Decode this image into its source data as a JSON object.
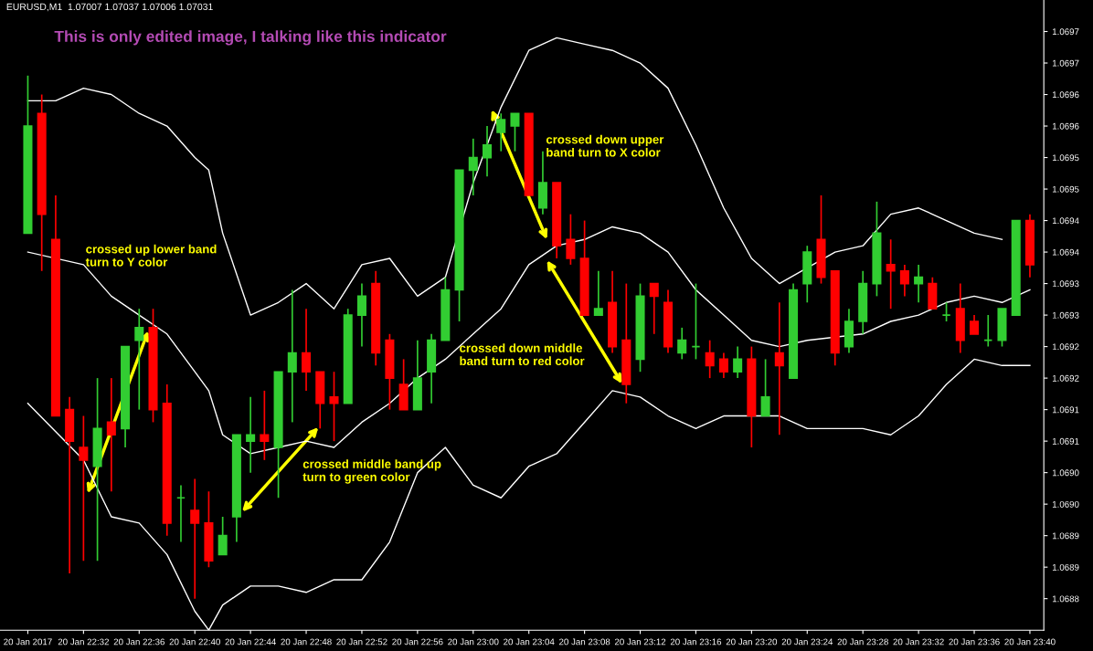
{
  "chart_data": {
    "type": "candlestick",
    "title": "EURUSD,M1  1.07007 1.07037 1.07006 1.07031",
    "subtitle": "This is only edited image, I talking like this indicator",
    "x": [
      "2017-01-20T22:28",
      "2017-01-20T22:29",
      "2017-01-20T22:30",
      "2017-01-20T22:31",
      "2017-01-20T22:32",
      "2017-01-20T22:33",
      "2017-01-20T22:34",
      "2017-01-20T22:35",
      "2017-01-20T22:36",
      "2017-01-20T22:37",
      "2017-01-20T22:38",
      "2017-01-20T22:39",
      "2017-01-20T22:40",
      "2017-01-20T22:41",
      "2017-01-20T22:42",
      "2017-01-20T22:43",
      "2017-01-20T22:44",
      "2017-01-20T22:45",
      "2017-01-20T22:46",
      "2017-01-20T22:47",
      "2017-01-20T22:48",
      "2017-01-20T22:49",
      "2017-01-20T22:50",
      "2017-01-20T22:51",
      "2017-01-20T22:52",
      "2017-01-20T22:53",
      "2017-01-20T22:54",
      "2017-01-20T22:55",
      "2017-01-20T22:56",
      "2017-01-20T22:57",
      "2017-01-20T22:58",
      "2017-01-20T22:59",
      "2017-01-20T23:00",
      "2017-01-20T23:01",
      "2017-01-20T23:02",
      "2017-01-20T23:03",
      "2017-01-20T23:04",
      "2017-01-20T23:05",
      "2017-01-20T23:06",
      "2017-01-20T23:07",
      "2017-01-20T23:08",
      "2017-01-20T23:09",
      "2017-01-20T23:10",
      "2017-01-20T23:11",
      "2017-01-20T23:12",
      "2017-01-20T23:13",
      "2017-01-20T23:14",
      "2017-01-20T23:15",
      "2017-01-20T23:16",
      "2017-01-20T23:17",
      "2017-01-20T23:18",
      "2017-01-20T23:19",
      "2017-01-20T23:20",
      "2017-01-20T23:21",
      "2017-01-20T23:22",
      "2017-01-20T23:23",
      "2017-01-20T23:24",
      "2017-01-20T23:25",
      "2017-01-20T23:26",
      "2017-01-20T23:27",
      "2017-01-20T23:28",
      "2017-01-20T23:29",
      "2017-01-20T23:30",
      "2017-01-20T23:31",
      "2017-01-20T23:32",
      "2017-01-20T23:33",
      "2017-01-20T23:34",
      "2017-01-20T23:35",
      "2017-01-20T23:36",
      "2017-01-20T23:37",
      "2017-01-20T23:38",
      "2017-01-20T23:39",
      "2017-01-20T23:40"
    ],
    "ohlc": [
      [
        1.06943,
        1.06968,
        1.06943,
        1.0696
      ],
      [
        1.06962,
        1.06965,
        1.06937,
        1.06946
      ],
      [
        1.06942,
        1.06949,
        1.06914,
        1.06914
      ],
      [
        1.06915,
        1.06917,
        1.06889,
        1.0691
      ],
      [
        1.06909,
        1.06914,
        1.06891,
        1.06907
      ],
      [
        1.06906,
        1.0692,
        1.06891,
        1.06912
      ],
      [
        1.06913,
        1.0692,
        1.06902,
        1.06911
      ],
      [
        1.06912,
        1.06925,
        1.06909,
        1.06925
      ],
      [
        1.06926,
        1.06931,
        1.06915,
        1.06928
      ],
      [
        1.06928,
        1.06931,
        1.06913,
        1.06915
      ],
      [
        1.06916,
        1.06919,
        1.06895,
        1.06897
      ],
      [
        1.06901,
        1.06903,
        1.06894,
        1.06901
      ],
      [
        1.06899,
        1.06904,
        1.06885,
        1.06897
      ],
      [
        1.06897,
        1.06902,
        1.0689,
        1.06891
      ],
      [
        1.06892,
        1.06898,
        1.06892,
        1.06895
      ],
      [
        1.06898,
        1.06911,
        1.06894,
        1.06911
      ],
      [
        1.0691,
        1.06917,
        1.06905,
        1.06911
      ],
      [
        1.06911,
        1.06918,
        1.06907,
        1.0691
      ],
      [
        1.06909,
        1.06921,
        1.06901,
        1.06921
      ],
      [
        1.06921,
        1.06934,
        1.06913,
        1.06924
      ],
      [
        1.06924,
        1.06931,
        1.06918,
        1.06921
      ],
      [
        1.06921,
        1.06921,
        1.06912,
        1.06916
      ],
      [
        1.06917,
        1.06921,
        1.0691,
        1.06916
      ],
      [
        1.06916,
        1.06931,
        1.06916,
        1.0693
      ],
      [
        1.0693,
        1.06935,
        1.06925,
        1.06933
      ],
      [
        1.06935,
        1.06937,
        1.06922,
        1.06924
      ],
      [
        1.06926,
        1.06927,
        1.06915,
        1.0692
      ],
      [
        1.06919,
        1.06923,
        1.06915,
        1.06915
      ],
      [
        1.06915,
        1.06926,
        1.06915,
        1.0692
      ],
      [
        1.06921,
        1.06927,
        1.06916,
        1.06926
      ],
      [
        1.06926,
        1.06936,
        1.06926,
        1.06934
      ],
      [
        1.06934,
        1.06953,
        1.06929,
        1.06953
      ],
      [
        1.06953,
        1.06958,
        1.06949,
        1.06955
      ],
      [
        1.06955,
        1.0696,
        1.06952,
        1.06957
      ],
      [
        1.06959,
        1.06962,
        1.06956,
        1.06961
      ],
      [
        1.0696,
        1.06962,
        1.06956,
        1.06962
      ],
      [
        1.06962,
        1.06962,
        1.06949,
        1.06949
      ],
      [
        1.06947,
        1.06956,
        1.06946,
        1.06951
      ],
      [
        1.06951,
        1.06951,
        1.06939,
        1.06941
      ],
      [
        1.06942,
        1.06946,
        1.06938,
        1.06939
      ],
      [
        1.06939,
        1.06945,
        1.0693,
        1.0693
      ],
      [
        1.0693,
        1.06937,
        1.0693,
        1.06931
      ],
      [
        1.06932,
        1.06937,
        1.06924,
        1.06925
      ],
      [
        1.06926,
        1.06935,
        1.06916,
        1.06919
      ],
      [
        1.06923,
        1.06935,
        1.06921,
        1.06933
      ],
      [
        1.06935,
        1.06935,
        1.06927,
        1.06933
      ],
      [
        1.06932,
        1.06934,
        1.06924,
        1.06925
      ],
      [
        1.06924,
        1.06928,
        1.06923,
        1.06926
      ],
      [
        1.06925,
        1.06935,
        1.06923,
        1.06925
      ],
      [
        1.06924,
        1.06926,
        1.0692,
        1.06922
      ],
      [
        1.06923,
        1.06924,
        1.0692,
        1.06921
      ],
      [
        1.06921,
        1.06925,
        1.0692,
        1.06923
      ],
      [
        1.06923,
        1.06925,
        1.06909,
        1.06914
      ],
      [
        1.06914,
        1.06923,
        1.06914,
        1.06917
      ],
      [
        1.06924,
        1.06932,
        1.06911,
        1.06922
      ],
      [
        1.0692,
        1.06935,
        1.0692,
        1.06934
      ],
      [
        1.06935,
        1.06941,
        1.06932,
        1.0694
      ],
      [
        1.06942,
        1.06949,
        1.06935,
        1.06936
      ],
      [
        1.06937,
        1.06937,
        1.06922,
        1.06924
      ],
      [
        1.06925,
        1.06931,
        1.06924,
        1.06929
      ],
      [
        1.06929,
        1.06937,
        1.06927,
        1.06935
      ],
      [
        1.06935,
        1.06948,
        1.06933,
        1.06943
      ],
      [
        1.06938,
        1.06942,
        1.06931,
        1.06937
      ],
      [
        1.06937,
        1.06938,
        1.06933,
        1.06935
      ],
      [
        1.06935,
        1.06938,
        1.06932,
        1.06936
      ],
      [
        1.06935,
        1.06936,
        1.06931,
        1.06931
      ],
      [
        1.0693,
        1.06932,
        1.06929,
        1.0693
      ],
      [
        1.06931,
        1.06935,
        1.06924,
        1.06926
      ],
      [
        1.06929,
        1.0693,
        1.06927,
        1.06927
      ],
      [
        1.06926,
        1.0693,
        1.06925,
        1.06926
      ],
      [
        1.06926,
        1.06931,
        1.06925,
        1.06931
      ],
      [
        1.0693,
        1.06945,
        1.0693,
        1.06945
      ],
      [
        1.06945,
        1.06946,
        1.06936,
        1.06938
      ]
    ],
    "colors": [
      "#32cd32",
      "#ff0000",
      "#ff0000",
      "#ff0000",
      "#ff0000",
      "#32cd32",
      "#ff0000",
      "#32cd32",
      "#32cd32",
      "#ff0000",
      "#ff0000",
      "#32cd32",
      "#ff0000",
      "#ff0000",
      "#32cd32",
      "#32cd32",
      "#32cd32",
      "#ff0000",
      "#32cd32",
      "#32cd32",
      "#ff0000",
      "#ff0000",
      "#ff0000",
      "#32cd32",
      "#32cd32",
      "#ff0000",
      "#ff0000",
      "#ff0000",
      "#32cd32",
      "#32cd32",
      "#32cd32",
      "#32cd32",
      "#32cd32",
      "#32cd32",
      "#32cd32",
      "#32cd32",
      "#ff0000",
      "#32cd32",
      "#ff0000",
      "#ff0000",
      "#ff0000",
      "#32cd32",
      "#ff0000",
      "#ff0000",
      "#32cd32",
      "#ff0000",
      "#ff0000",
      "#32cd32",
      "#32cd32",
      "#ff0000",
      "#ff0000",
      "#32cd32",
      "#ff0000",
      "#32cd32",
      "#ff0000",
      "#32cd32",
      "#32cd32",
      "#ff0000",
      "#ff0000",
      "#32cd32",
      "#32cd32",
      "#32cd32",
      "#ff0000",
      "#ff0000",
      "#32cd32",
      "#ff0000",
      "#32cd32",
      "#ff0000",
      "#ff0000",
      "#32cd32",
      "#32cd32",
      "#32cd32",
      "#ff0000"
    ],
    "series": [
      {
        "type": "line",
        "color": "#ffffff",
        "x": [
          "2017-01-20T22:28",
          "2017-01-20T22:30",
          "2017-01-20T22:32",
          "2017-01-20T22:34",
          "2017-01-20T22:36",
          "2017-01-20T22:38",
          "2017-01-20T22:40",
          "2017-01-20T22:41",
          "2017-01-20T22:42",
          "2017-01-20T22:44",
          "2017-01-20T22:46",
          "2017-01-20T22:48",
          "2017-01-20T22:50",
          "2017-01-20T22:52",
          "2017-01-20T22:54",
          "2017-01-20T22:56",
          "2017-01-20T22:58",
          "2017-01-20T23:00",
          "2017-01-20T23:02",
          "2017-01-20T23:04",
          "2017-01-20T23:06",
          "2017-01-20T23:08",
          "2017-01-20T23:10",
          "2017-01-20T23:12",
          "2017-01-20T23:14",
          "2017-01-20T23:16",
          "2017-01-20T23:18",
          "2017-01-20T23:20",
          "2017-01-20T23:22",
          "2017-01-20T23:26",
          "2017-01-20T23:28",
          "2017-01-20T23:30",
          "2017-01-20T23:32",
          "2017-01-20T23:34",
          "2017-01-20T23:36",
          "2017-01-20T23:38"
        ],
        "values": [
          1.06964,
          1.06964,
          1.06966,
          1.06965,
          1.06962,
          1.0696,
          1.06955,
          1.06953,
          1.06943,
          1.0693,
          1.06932,
          1.06935,
          1.06931,
          1.06938,
          1.06939,
          1.06933,
          1.06936,
          1.06951,
          1.06963,
          1.06972,
          1.06974,
          1.06973,
          1.06972,
          1.0697,
          1.06966,
          1.06957,
          1.06947,
          1.06939,
          1.06935,
          1.0694,
          1.06941,
          1.06946,
          1.06947,
          1.06945,
          1.06943,
          1.06942
        ]
      },
      {
        "type": "line",
        "color": "#ffffff",
        "x": [
          "2017-01-20T22:28",
          "2017-01-20T22:32",
          "2017-01-20T22:34",
          "2017-01-20T22:36",
          "2017-01-20T22:38",
          "2017-01-20T22:40",
          "2017-01-20T22:41",
          "2017-01-20T22:42",
          "2017-01-20T22:44",
          "2017-01-20T22:46",
          "2017-01-20T22:48",
          "2017-01-20T22:50",
          "2017-01-20T22:52",
          "2017-01-20T22:54",
          "2017-01-20T22:56",
          "2017-01-20T22:58",
          "2017-01-20T23:00",
          "2017-01-20T23:02",
          "2017-01-20T23:04",
          "2017-01-20T23:06",
          "2017-01-20T23:08",
          "2017-01-20T23:10",
          "2017-01-20T23:12",
          "2017-01-20T23:14",
          "2017-01-20T23:16",
          "2017-01-20T23:18",
          "2017-01-20T23:20",
          "2017-01-20T23:22",
          "2017-01-20T23:24",
          "2017-01-20T23:28",
          "2017-01-20T23:30",
          "2017-01-20T23:32",
          "2017-01-20T23:34",
          "2017-01-20T23:36",
          "2017-01-20T23:38",
          "2017-01-20T23:40"
        ],
        "values": [
          1.0694,
          1.06938,
          1.06933,
          1.0693,
          1.06927,
          1.06921,
          1.06918,
          1.06911,
          1.06908,
          1.06909,
          1.0691,
          1.06909,
          1.06913,
          1.06916,
          1.0692,
          1.06923,
          1.06927,
          1.06931,
          1.06938,
          1.06941,
          1.06942,
          1.06944,
          1.06943,
          1.0694,
          1.06934,
          1.0693,
          1.06926,
          1.06925,
          1.06926,
          1.06927,
          1.06929,
          1.0693,
          1.06932,
          1.06933,
          1.06932,
          1.06934
        ]
      },
      {
        "type": "line",
        "color": "#ffffff",
        "x": [
          "2017-01-20T22:28",
          "2017-01-20T22:32",
          "2017-01-20T22:34",
          "2017-01-20T22:36",
          "2017-01-20T22:38",
          "2017-01-20T22:40",
          "2017-01-20T22:41",
          "2017-01-20T22:42",
          "2017-01-20T22:44",
          "2017-01-20T22:46",
          "2017-01-20T22:48",
          "2017-01-20T22:50",
          "2017-01-20T22:52",
          "2017-01-20T22:54",
          "2017-01-20T22:56",
          "2017-01-20T22:58",
          "2017-01-20T23:00",
          "2017-01-20T23:02",
          "2017-01-20T23:04",
          "2017-01-20T23:06",
          "2017-01-20T23:08",
          "2017-01-20T23:10",
          "2017-01-20T23:12",
          "2017-01-20T23:14",
          "2017-01-20T23:16",
          "2017-01-20T23:18",
          "2017-01-20T23:22",
          "2017-01-20T23:24",
          "2017-01-20T23:26",
          "2017-01-20T23:28",
          "2017-01-20T23:30",
          "2017-01-20T23:32",
          "2017-01-20T23:34",
          "2017-01-20T23:36",
          "2017-01-20T23:38",
          "2017-01-20T23:40"
        ],
        "values": [
          1.06916,
          1.06907,
          1.06898,
          1.06897,
          1.06892,
          1.06883,
          1.0688,
          1.06884,
          1.06887,
          1.06887,
          1.06886,
          1.06888,
          1.06888,
          1.06894,
          1.06905,
          1.06909,
          1.06903,
          1.06901,
          1.06906,
          1.06908,
          1.06913,
          1.06918,
          1.06917,
          1.06914,
          1.06912,
          1.06914,
          1.06914,
          1.06912,
          1.06912,
          1.06912,
          1.06911,
          1.06914,
          1.06919,
          1.06923,
          1.06922,
          1.06922
        ]
      }
    ],
    "annotations": [
      "crossed up lower band\nturn to Y color",
      "crossed middle band up\nturn to green color",
      "crossed down upper\nband turn to X color",
      "crossed down middle\nband turn to red color"
    ],
    "xlim": [
      "2017-01-20T22:26",
      "2017-01-20T23:41"
    ],
    "xticks": [
      {
        "value": "2017-01-20T22:28",
        "label": "20 Jan 2017"
      },
      {
        "value": "2017-01-20T22:32",
        "label": "20 Jan 22:32"
      },
      {
        "value": "2017-01-20T22:36",
        "label": "20 Jan 22:36"
      },
      {
        "value": "2017-01-20T22:40",
        "label": "20 Jan 22:40"
      },
      {
        "value": "2017-01-20T22:44",
        "label": "20 Jan 22:44"
      },
      {
        "value": "2017-01-20T22:48",
        "label": "20 Jan 22:48"
      },
      {
        "value": "2017-01-20T22:52",
        "label": "20 Jan 22:52"
      },
      {
        "value": "2017-01-20T22:56",
        "label": "20 Jan 22:56"
      },
      {
        "value": "2017-01-20T23:00",
        "label": "20 Jan 23:00"
      },
      {
        "value": "2017-01-20T23:04",
        "label": "20 Jan 23:04"
      },
      {
        "value": "2017-01-20T23:08",
        "label": "20 Jan 23:08"
      },
      {
        "value": "2017-01-20T23:12",
        "label": "20 Jan 23:12"
      },
      {
        "value": "2017-01-20T23:16",
        "label": "20 Jan 23:16"
      },
      {
        "value": "2017-01-20T23:20",
        "label": "20 Jan 23:20"
      },
      {
        "value": "2017-01-20T23:24",
        "label": "20 Jan 23:24"
      },
      {
        "value": "2017-01-20T23:28",
        "label": "20 Jan 23:28"
      },
      {
        "value": "2017-01-20T23:32",
        "label": "20 Jan 23:32"
      },
      {
        "value": "2017-01-20T23:36",
        "label": "20 Jan 23:36"
      },
      {
        "value": "2017-01-20T23:40",
        "label": "20 Jan 23:40"
      }
    ],
    "ylim": [
      1.0688,
      1.0698
    ],
    "yticks": [
      {
        "value": 1.06975,
        "label": "1.0697"
      },
      {
        "value": 1.0697,
        "label": "1.0697"
      },
      {
        "value": 1.06965,
        "label": "1.0696"
      },
      {
        "value": 1.0696,
        "label": "1.0696"
      },
      {
        "value": 1.06955,
        "label": "1.0695"
      },
      {
        "value": 1.0695,
        "label": "1.0695"
      },
      {
        "value": 1.06945,
        "label": "1.0694"
      },
      {
        "value": 1.0694,
        "label": "1.0694"
      },
      {
        "value": 1.06935,
        "label": "1.0693"
      },
      {
        "value": 1.0693,
        "label": "1.0693"
      },
      {
        "value": 1.06925,
        "label": "1.0692"
      },
      {
        "value": 1.0692,
        "label": "1.0692"
      },
      {
        "value": 1.06915,
        "label": "1.0691"
      },
      {
        "value": 1.0691,
        "label": "1.0691"
      },
      {
        "value": 1.06905,
        "label": "1.0690"
      },
      {
        "value": 1.069,
        "label": "1.0690"
      },
      {
        "value": 1.06895,
        "label": "1.0689"
      },
      {
        "value": 1.0689,
        "label": "1.0689"
      },
      {
        "value": 1.06885,
        "label": "1.0688"
      }
    ]
  }
}
